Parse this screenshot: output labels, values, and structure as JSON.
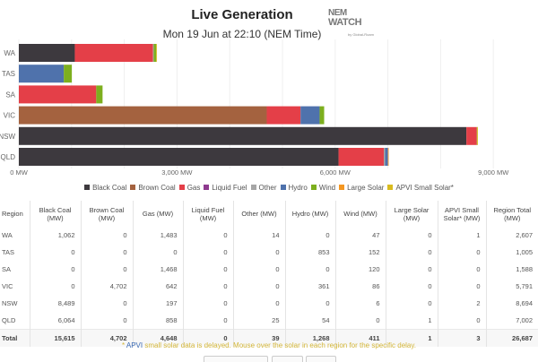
{
  "header": {
    "title": "Live Generation",
    "subtitle": "Mon 19 Jun at 22:10 (NEM Time)",
    "logo_line1": "NEM",
    "logo_line2": "WATCH",
    "logo_line3": "by Global-Roam"
  },
  "colors": {
    "Black Coal": "#3d393e",
    "Brown Coal": "#a4623f",
    "Gas": "#e43f48",
    "Liquid Fuel": "#8e3a8f",
    "Other": "#a6a6a6",
    "Hydro": "#4f72ac",
    "Wind": "#7daf1e",
    "Large Solar": "#f49722",
    "APVI Small Solar*": "#d9bb1f"
  },
  "chart_data": {
    "type": "bar",
    "orientation": "horizontal",
    "stacked": true,
    "title": "Live Generation",
    "subtitle": "Mon 19 Jun at 22:10 (NEM Time)",
    "xlabel": "",
    "ylabel": "",
    "categories": [
      "WA",
      "TAS",
      "SA",
      "VIC",
      "NSW",
      "QLD"
    ],
    "xlim": [
      0,
      10000
    ],
    "x_ticks": [
      0,
      3000,
      6000,
      9000
    ],
    "x_tick_labels": [
      "0 MW",
      "3,000 MW",
      "6,000 MW",
      "9,000 MW"
    ],
    "grid": true,
    "legend_position": "bottom",
    "series": [
      {
        "name": "Black Coal",
        "values": [
          1062,
          0,
          0,
          0,
          8489,
          6064
        ]
      },
      {
        "name": "Brown Coal",
        "values": [
          0,
          0,
          0,
          4702,
          0,
          0
        ]
      },
      {
        "name": "Gas",
        "values": [
          1483,
          0,
          1468,
          642,
          197,
          858
        ]
      },
      {
        "name": "Liquid Fuel",
        "values": [
          0,
          0,
          0,
          0,
          0,
          0
        ]
      },
      {
        "name": "Other",
        "values": [
          14,
          0,
          0,
          0,
          0,
          25
        ]
      },
      {
        "name": "Hydro",
        "values": [
          0,
          853,
          0,
          361,
          0,
          54
        ]
      },
      {
        "name": "Wind",
        "values": [
          47,
          152,
          120,
          86,
          6,
          0
        ]
      },
      {
        "name": "Large Solar",
        "values": [
          0,
          0,
          0,
          0,
          0,
          1
        ]
      },
      {
        "name": "APVI Small Solar*",
        "values": [
          1,
          0,
          0,
          0,
          2,
          0
        ]
      }
    ]
  },
  "table": {
    "headers": [
      "Region",
      "Black Coal (MW)",
      "Brown Coal (MW)",
      "Gas (MW)",
      "Liquid Fuel (MW)",
      "Other (MW)",
      "Hydro (MW)",
      "Wind (MW)",
      "Large Solar (MW)",
      "APVI Small Solar* (MW)",
      "Region Total (MW)"
    ],
    "rows": [
      [
        "WA",
        "1,062",
        "0",
        "1,483",
        "0",
        "14",
        "0",
        "47",
        "0",
        "1",
        "2,607"
      ],
      [
        "TAS",
        "0",
        "0",
        "0",
        "0",
        "0",
        "853",
        "152",
        "0",
        "0",
        "1,005"
      ],
      [
        "SA",
        "0",
        "0",
        "1,468",
        "0",
        "0",
        "0",
        "120",
        "0",
        "0",
        "1,588"
      ],
      [
        "VIC",
        "0",
        "4,702",
        "642",
        "0",
        "0",
        "361",
        "86",
        "0",
        "0",
        "5,791"
      ],
      [
        "NSW",
        "8,489",
        "0",
        "197",
        "0",
        "0",
        "0",
        "6",
        "0",
        "2",
        "8,694"
      ],
      [
        "QLD",
        "6,064",
        "0",
        "858",
        "0",
        "25",
        "54",
        "0",
        "1",
        "0",
        "7,002"
      ]
    ],
    "total": [
      "Total",
      "15,615",
      "4,702",
      "4,648",
      "0",
      "39",
      "1,268",
      "411",
      "1",
      "3",
      "26,687"
    ]
  },
  "note": {
    "prefix": "* ",
    "apvi": "APVI",
    "text": " small solar data is delayed. Mouse over the solar in each region for the specific delay."
  }
}
